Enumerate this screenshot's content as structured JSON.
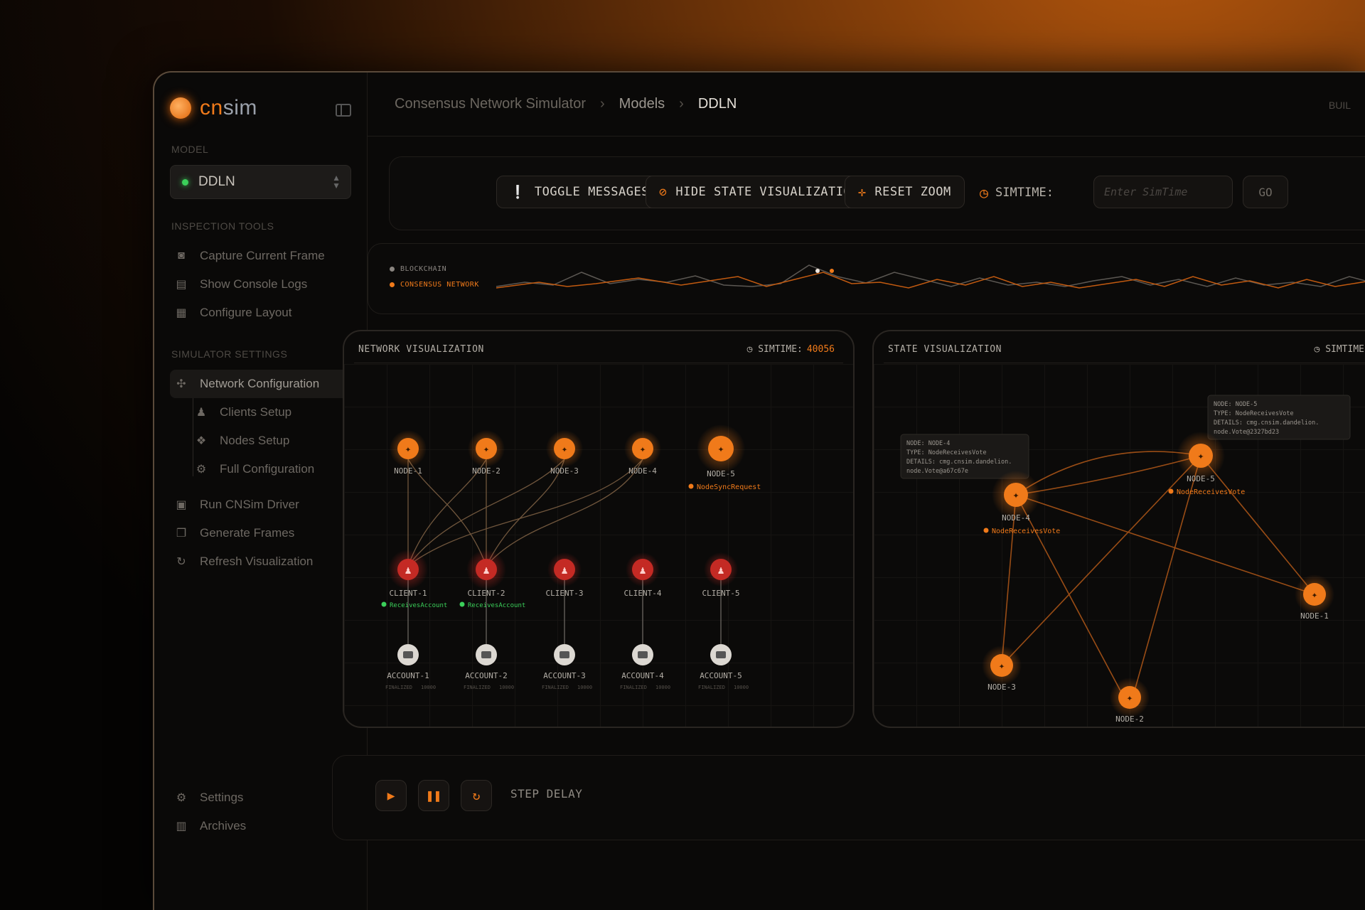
{
  "brand": {
    "name_a": "cn",
    "name_b": "sim"
  },
  "sidebar": {
    "model_label": "MODEL",
    "model_value": "DDLN",
    "inspection_label": "INSPECTION TOOLS",
    "inspection_items": [
      {
        "label": "Capture Current Frame",
        "icon": "camera-icon"
      },
      {
        "label": "Show Console Logs",
        "icon": "terminal-icon"
      },
      {
        "label": "Configure Layout",
        "icon": "layout-icon"
      }
    ],
    "settings_label": "SIMULATOR SETTINGS",
    "network_config": "Network Configuration",
    "sub_items": [
      {
        "label": "Clients Setup",
        "icon": "user-icon"
      },
      {
        "label": "Nodes Setup",
        "icon": "cube-icon"
      },
      {
        "label": "Full Configuration",
        "icon": "gear-icon"
      }
    ],
    "actions": [
      {
        "label": "Run CNSim Driver",
        "icon": "play-icon"
      },
      {
        "label": "Generate Frames",
        "icon": "frames-icon"
      },
      {
        "label": "Refresh Visualization",
        "icon": "refresh-icon"
      }
    ],
    "bottom": [
      {
        "label": "Settings",
        "icon": "gear-icon"
      },
      {
        "label": "Archives",
        "icon": "archive-icon"
      }
    ]
  },
  "header": {
    "crumb_1": "Consensus Network Simulator",
    "crumb_2": "Models",
    "crumb_3": "DDLN",
    "sep": "›",
    "build": "BUIL"
  },
  "toolbar": {
    "toggle_messages": "TOGGLE MESSAGES",
    "hide_state": "HIDE STATE VISUALIZATION",
    "reset_zoom": "RESET ZOOM",
    "simtime_label": "SIMTIME:",
    "simtime_placeholder": "Enter SimTime",
    "go": "GO"
  },
  "timeline": {
    "legend_blockchain": "BLOCKCHAIN",
    "legend_consensus": "CONSENSUS NETWORK",
    "colors": {
      "blockchain": "#8a8580",
      "consensus": "#f07a1a"
    }
  },
  "network": {
    "title": "NETWORK VISUALIZATION",
    "simtime_label": "SIMTIME:",
    "simtime_value": "40056",
    "nodes": [
      "NODE-1",
      "NODE-2",
      "NODE-3",
      "NODE-4",
      "NODE-5"
    ],
    "node5_event": "NodeSyncRequest",
    "clients": [
      "CLIENT-1",
      "CLIENT-2",
      "CLIENT-3",
      "CLIENT-4",
      "CLIENT-5"
    ],
    "client_events": [
      "ReceivesAccount",
      "ReceivesAccount",
      "",
      "",
      ""
    ],
    "accounts": [
      "ACCOUNT-1",
      "ACCOUNT-2",
      "ACCOUNT-3",
      "ACCOUNT-4",
      "ACCOUNT-5"
    ],
    "account_meta_status": "FINALIZED",
    "account_meta_value": "10000"
  },
  "state": {
    "title": "STATE VISUALIZATION",
    "simtime_label": "SIMTIME",
    "nodes": [
      "NODE-4",
      "NODE-5",
      "NODE-1",
      "NODE-3",
      "NODE-2"
    ],
    "node4_event": "NodeReceivesVote",
    "node5_event": "NodeReceivesVote",
    "tip_a": {
      "line1": "NODE: NODE-4",
      "line2": "TYPE: NodeReceivesVote",
      "line3": "DETAILS: cmg.cnsim.dandelion.",
      "line4": "node.Vote@a67c67e"
    },
    "tip_b": {
      "line1": "NODE: NODE-5",
      "line2": "TYPE: NodeReceivesVote",
      "line3": "DETAILS: cmg.cnsim.dandelion.",
      "line4": "node.Vote@2327bd23"
    }
  },
  "controls": {
    "step_label": "STEP DELAY"
  },
  "colors": {
    "accent": "#f07a1a",
    "client": "#e0302a",
    "ok": "#3bd05a"
  }
}
